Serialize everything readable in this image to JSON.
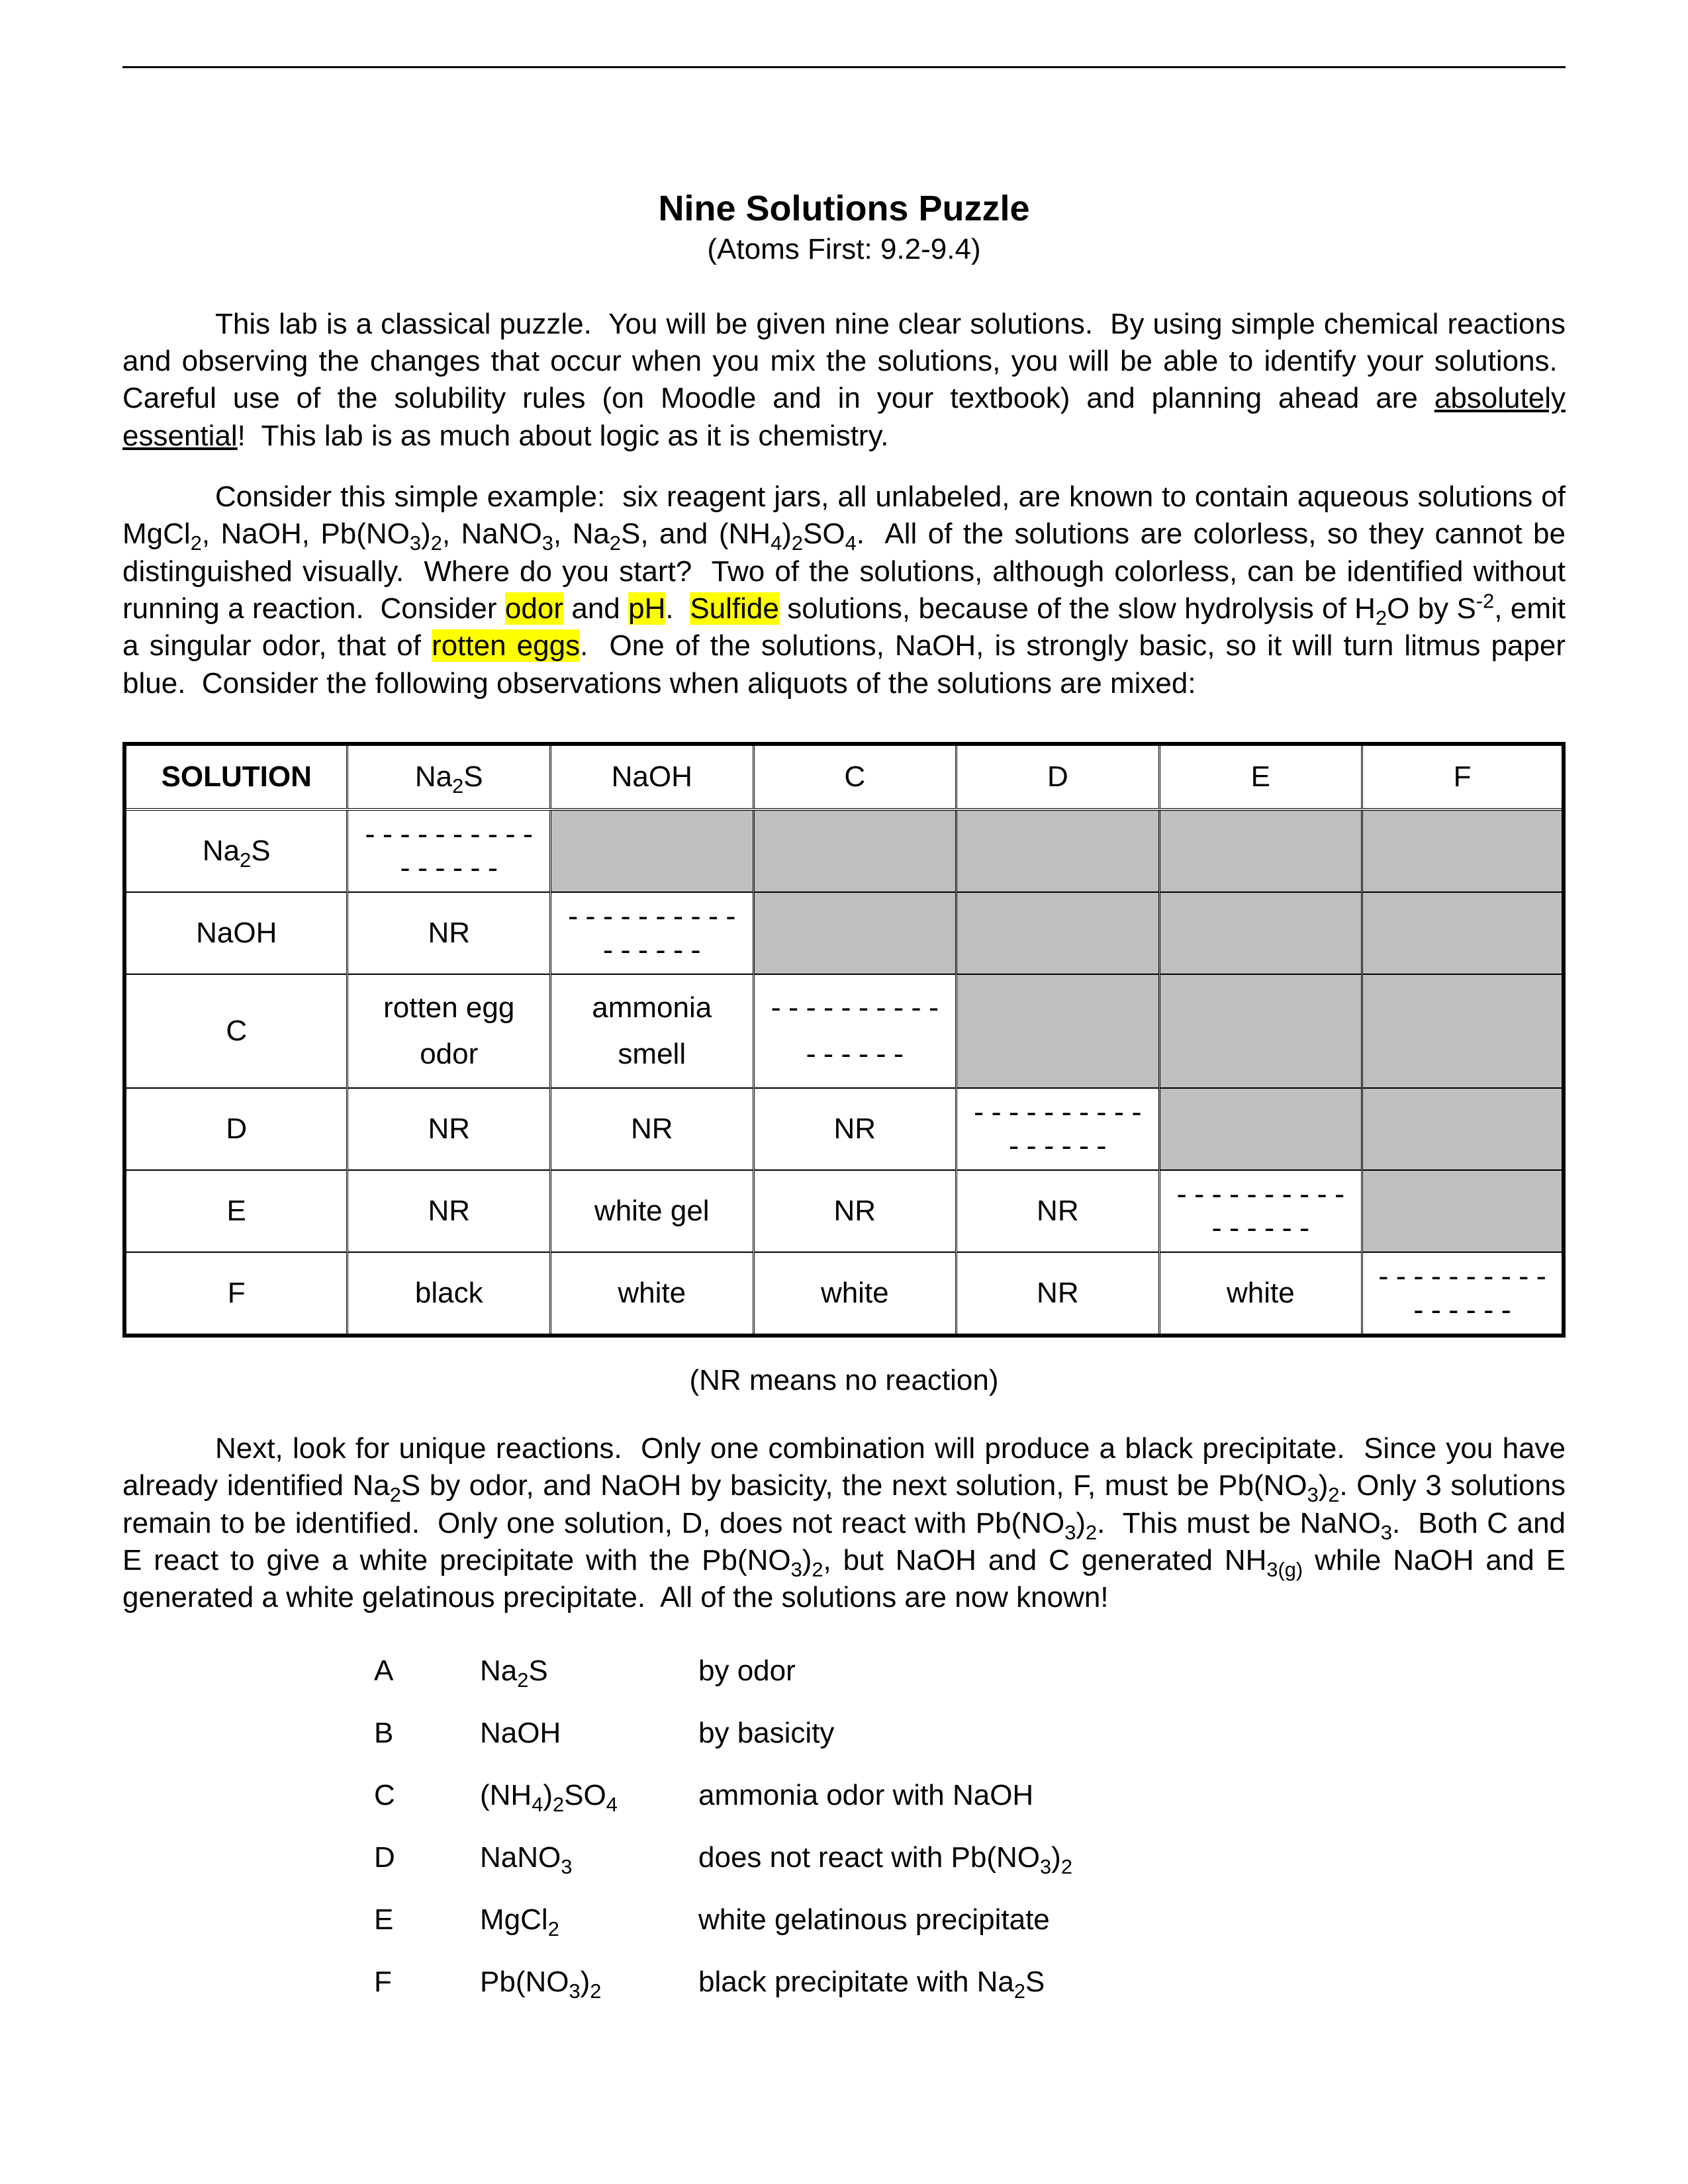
{
  "title": "Nine Solutions Puzzle",
  "subtitle": "(Atoms First: 9.2-9.4)",
  "caption": "(NR means no reaction)",
  "matrix": {
    "col0_header": "SOLUTION",
    "columns": [
      "Na2S",
      "NaOH",
      "C",
      "D",
      "E",
      "F"
    ],
    "diag": "----------------",
    "rows": [
      {
        "label": "Na2S",
        "cells": [
          "",
          "",
          "",
          "",
          "",
          ""
        ],
        "diag_at": 0
      },
      {
        "label": "NaOH",
        "cells": [
          "NR",
          "",
          "",
          "",
          "",
          ""
        ],
        "diag_at": 1
      },
      {
        "label": "C",
        "cells": [
          "rotten egg\nodor",
          "ammonia\nsmell",
          "",
          "",
          "",
          ""
        ],
        "diag_at": 2,
        "tall": true
      },
      {
        "label": "D",
        "cells": [
          "NR",
          "NR",
          "NR",
          "",
          "",
          ""
        ],
        "diag_at": 3
      },
      {
        "label": "E",
        "cells": [
          "NR",
          "white gel",
          "NR",
          "NR",
          "",
          ""
        ],
        "diag_at": 4
      },
      {
        "label": "F",
        "cells": [
          "black",
          "white",
          "white",
          "NR",
          "white",
          ""
        ],
        "diag_at": 5
      }
    ]
  },
  "answers": [
    {
      "letter": "A",
      "formula": "Na2S",
      "reason": "by odor"
    },
    {
      "letter": "B",
      "formula": "NaOH",
      "reason": "by basicity"
    },
    {
      "letter": "C",
      "formula": "(NH4)2SO4",
      "reason": "ammonia odor with NaOH"
    },
    {
      "letter": "D",
      "formula": "NaNO3",
      "reason": "does not react with Pb(NO3)2"
    },
    {
      "letter": "E",
      "formula": "MgCl2",
      "reason": "white gelatinous precipitate"
    },
    {
      "letter": "F",
      "formula": "Pb(NO3)2",
      "reason": "black precipitate with Na2S"
    }
  ],
  "colors": {
    "highlight": "#ffff00",
    "shade": "#bfbfbf",
    "text": "#000000",
    "background": "#ffffff"
  },
  "fontsizes_pt": {
    "title": 18,
    "subtitle": 15,
    "body": 15
  }
}
